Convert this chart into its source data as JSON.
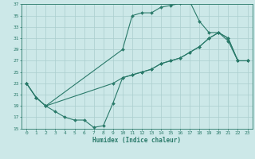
{
  "xlabel": "Humidex (Indice chaleur)",
  "bg_color": "#cce8e8",
  "line_color": "#2a7a6a",
  "grid_color": "#aacece",
  "xlim": [
    -0.5,
    23.5
  ],
  "ylim": [
    15,
    37
  ],
  "xticks": [
    0,
    1,
    2,
    3,
    4,
    5,
    6,
    7,
    8,
    9,
    10,
    11,
    12,
    13,
    14,
    15,
    16,
    17,
    18,
    19,
    20,
    21,
    22,
    23
  ],
  "yticks": [
    15,
    17,
    19,
    21,
    23,
    25,
    27,
    29,
    31,
    33,
    35,
    37
  ],
  "line1_x": [
    0,
    1,
    2,
    10,
    11,
    12,
    13,
    14,
    15,
    16,
    17,
    18,
    19,
    20,
    21,
    22,
    23
  ],
  "line1_y": [
    23,
    20.5,
    19,
    29,
    35,
    35.5,
    35.5,
    36.5,
    36.8,
    37.2,
    37.5,
    34,
    32,
    32,
    30.5,
    27,
    27
  ],
  "line2_x": [
    0,
    1,
    2,
    9,
    10,
    11,
    12,
    13,
    14,
    15,
    16,
    17,
    18,
    19,
    20,
    21,
    22,
    23
  ],
  "line2_y": [
    23,
    20.5,
    19,
    23,
    24,
    24.5,
    25,
    25.5,
    26.5,
    27,
    27.5,
    28.5,
    29.5,
    31,
    32,
    31,
    27,
    27
  ],
  "line3_x": [
    0,
    1,
    2,
    3,
    4,
    5,
    6,
    7,
    8,
    9,
    10,
    11,
    12,
    13,
    14,
    15,
    16,
    17,
    18,
    19,
    20,
    21,
    22,
    23
  ],
  "line3_y": [
    23,
    20.5,
    19,
    18,
    17,
    16.5,
    16.5,
    15.2,
    15.5,
    19.5,
    24,
    24.5,
    25,
    25.5,
    26.5,
    27,
    27.5,
    28.5,
    29.5,
    31,
    32,
    31,
    27,
    27
  ]
}
